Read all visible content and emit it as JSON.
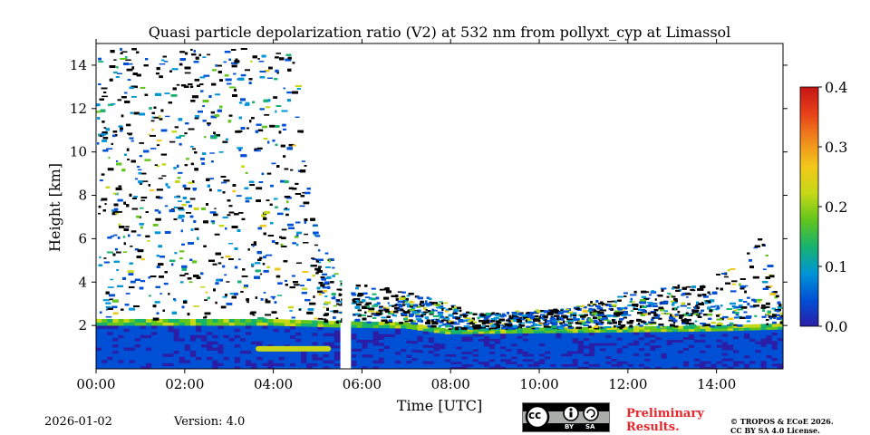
{
  "chart_data": {
    "type": "heatmap",
    "title": "Quasi particle depolarization ratio (V2) at 532 nm from pollyxt_cyp at Limassol",
    "xlabel": "Time [UTC]",
    "ylabel": "Height [km]",
    "xlim": [
      0,
      15.5
    ],
    "ylim": [
      0,
      15
    ],
    "x_ticks": [
      0,
      2,
      4,
      6,
      8,
      10,
      12,
      14
    ],
    "x_tick_labels": [
      "00:00",
      "02:00",
      "04:00",
      "06:00",
      "08:00",
      "10:00",
      "12:00",
      "14:00"
    ],
    "y_ticks": [
      2,
      4,
      6,
      8,
      10,
      12,
      14
    ],
    "y_tick_labels": [
      "2",
      "4",
      "6",
      "8",
      "10",
      "12",
      "14"
    ],
    "colorbar": {
      "min": 0.0,
      "max": 0.4,
      "ticks": [
        0.0,
        0.1,
        0.2,
        0.3,
        0.4
      ],
      "tick_labels": [
        "0.0",
        "0.1",
        "0.2",
        "0.3",
        "0.4"
      ],
      "colormap": [
        "#2a1ea6",
        "#0050d6",
        "#0096d6",
        "#17b26e",
        "#62c51d",
        "#c6d817",
        "#f2c81b",
        "#f08a1c",
        "#e8401a",
        "#c41414"
      ]
    },
    "data_gap": [
      5.55,
      5.75
    ],
    "boundary_layer_top_km": [
      {
        "t": 0.0,
        "h": 2.3
      },
      {
        "t": 2.0,
        "h": 2.3
      },
      {
        "t": 4.0,
        "h": 2.3
      },
      {
        "t": 5.5,
        "h": 2.2
      },
      {
        "t": 7.0,
        "h": 2.15
      },
      {
        "t": 7.9,
        "h": 1.85
      },
      {
        "t": 10.0,
        "h": 1.9
      },
      {
        "t": 12.0,
        "h": 1.95
      },
      {
        "t": 14.0,
        "h": 2.0
      },
      {
        "t": 15.5,
        "h": 2.1
      }
    ],
    "elevated_layer": {
      "t_start": 3.6,
      "t_end": 5.3,
      "h": 0.8,
      "value": 0.2
    },
    "noise_region_top_km": [
      {
        "t": 0.0,
        "h": 14.8
      },
      {
        "t": 4.5,
        "h": 14.8
      },
      {
        "t": 4.7,
        "h": 9.5
      },
      {
        "t": 5.0,
        "h": 6.0
      },
      {
        "t": 5.5,
        "h": 4.2
      },
      {
        "t": 6.5,
        "h": 3.8
      },
      {
        "t": 7.5,
        "h": 3.3
      },
      {
        "t": 8.5,
        "h": 2.6
      },
      {
        "t": 10.5,
        "h": 2.8
      },
      {
        "t": 12.0,
        "h": 3.6
      },
      {
        "t": 13.5,
        "h": 4.0
      },
      {
        "t": 14.5,
        "h": 4.8
      },
      {
        "t": 15.0,
        "h": 6.5
      },
      {
        "t": 15.5,
        "h": 2.3
      }
    ]
  },
  "footer": {
    "date": "2026-01-02",
    "version": "Version: 4.0",
    "prelim_line1": "Preliminary",
    "prelim_line2": "Results.",
    "copyright_line1": "© TROPOS & ECoE 2026.",
    "copyright_line2": "CC BY SA 4.0 License."
  },
  "license_badge": {
    "cc": "cc",
    "by": "BY",
    "sa": "SA"
  }
}
